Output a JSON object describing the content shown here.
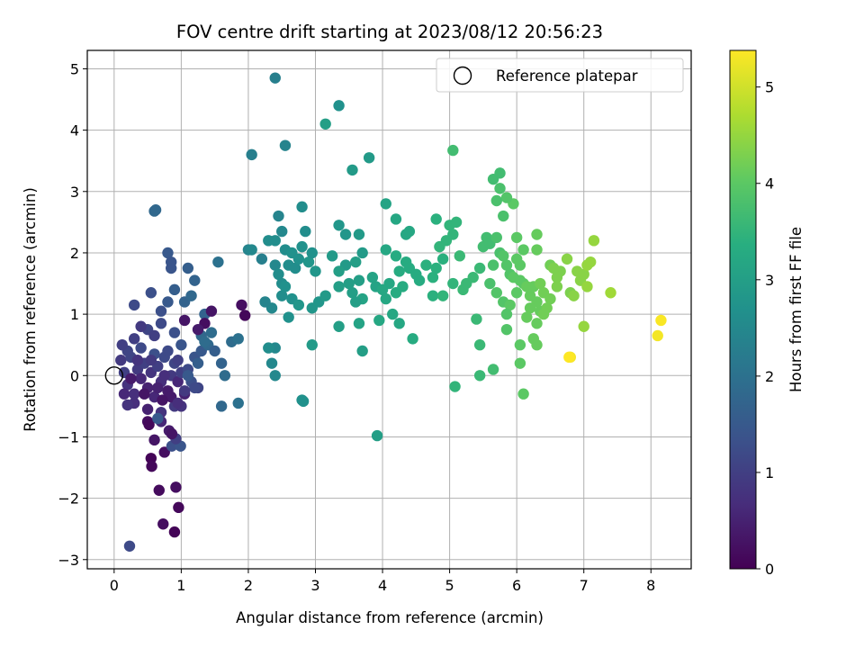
{
  "chart_data": {
    "type": "scatter",
    "title": "FOV centre drift starting at 2023/08/12 20:56:23",
    "xlabel": "Angular distance from reference (arcmin)",
    "ylabel": "Rotation from reference (arcmin)",
    "colorbar_label": "Hours from first FF file",
    "colormap": "viridis",
    "xlim": [
      -0.4,
      8.6
    ],
    "ylim": [
      -3.15,
      5.3
    ],
    "clim": [
      0,
      5.38
    ],
    "xticks": [
      0,
      1,
      2,
      3,
      4,
      5,
      6,
      7,
      8
    ],
    "yticks": [
      -3,
      -2,
      -1,
      0,
      1,
      2,
      3,
      4,
      5
    ],
    "colorbar_ticks": [
      0,
      1,
      2,
      3,
      4,
      5
    ],
    "grid": true,
    "legend": {
      "position": "top-right",
      "entries": [
        {
          "label": "Reference platepar",
          "marker": "hollow-circle",
          "x": 0,
          "y": 0
        }
      ]
    },
    "points": [
      [
        0.1,
        0.25,
        0.9
      ],
      [
        0.15,
        0.05,
        1.0
      ],
      [
        0.2,
        -0.15,
        0.8
      ],
      [
        0.25,
        0.3,
        1.1
      ],
      [
        0.3,
        -0.3,
        0.7
      ],
      [
        0.35,
        0.1,
        0.9
      ],
      [
        0.4,
        -0.05,
        0.6
      ],
      [
        0.45,
        0.2,
        1.0
      ],
      [
        0.5,
        -0.2,
        0.5
      ],
      [
        0.55,
        0.05,
        0.8
      ],
      [
        0.6,
        -0.35,
        0.6
      ],
      [
        0.65,
        0.15,
        1.0
      ],
      [
        0.7,
        -0.1,
        0.7
      ],
      [
        0.75,
        0.3,
        1.2
      ],
      [
        0.8,
        -0.25,
        0.4
      ],
      [
        0.85,
        0.0,
        0.9
      ],
      [
        0.9,
        0.2,
        1.1
      ],
      [
        0.95,
        -0.1,
        0.6
      ],
      [
        1.0,
        0.05,
        1.0
      ],
      [
        1.05,
        -0.3,
        0.5
      ],
      [
        0.2,
        0.4,
        1.1
      ],
      [
        0.3,
        -0.45,
        0.7
      ],
      [
        0.4,
        0.45,
        1.2
      ],
      [
        0.5,
        -0.55,
        0.5
      ],
      [
        0.6,
        0.35,
        1.3
      ],
      [
        0.7,
        -0.6,
        0.8
      ],
      [
        0.8,
        0.4,
        1.2
      ],
      [
        0.9,
        -0.5,
        0.9
      ],
      [
        0.25,
        -0.05,
        0.4
      ],
      [
        0.35,
        0.25,
        0.8
      ],
      [
        0.45,
        -0.3,
        0.3
      ],
      [
        0.55,
        0.25,
        0.9
      ],
      [
        0.65,
        -0.2,
        0.5
      ],
      [
        0.75,
        0.0,
        0.7
      ],
      [
        0.85,
        -0.35,
        0.4
      ],
      [
        0.95,
        0.25,
        1.0
      ],
      [
        0.15,
        -0.3,
        0.6
      ],
      [
        0.12,
        0.5,
        1.0
      ],
      [
        0.2,
        -0.48,
        0.8
      ],
      [
        1.1,
        0.1,
        1.2
      ],
      [
        1.15,
        -0.1,
        1.3
      ],
      [
        1.2,
        0.3,
        1.4
      ],
      [
        1.25,
        -0.2,
        1.1
      ],
      [
        1.3,
        0.4,
        1.5
      ],
      [
        0.3,
        0.6,
        1.0
      ],
      [
        0.5,
        0.75,
        1.1
      ],
      [
        0.7,
        0.85,
        1.2
      ],
      [
        0.9,
        0.7,
        1.3
      ],
      [
        1.0,
        0.5,
        1.4
      ],
      [
        0.4,
        0.8,
        0.9
      ],
      [
        0.6,
        0.65,
        1.0
      ],
      [
        0.8,
        1.2,
        1.5
      ],
      [
        0.55,
        1.35,
        1.3
      ],
      [
        0.9,
        1.4,
        1.6
      ],
      [
        0.3,
        1.15,
        1.2
      ],
      [
        0.7,
        1.05,
        1.3
      ],
      [
        1.05,
        1.2,
        1.7
      ],
      [
        1.1,
        1.75,
        1.6
      ],
      [
        0.85,
        1.75,
        1.4
      ],
      [
        0.8,
        2.0,
        1.5
      ],
      [
        0.85,
        1.85,
        1.4
      ],
      [
        1.2,
        1.55,
        1.7
      ],
      [
        1.15,
        1.3,
        1.8
      ],
      [
        1.35,
        1.0,
        1.7
      ],
      [
        1.45,
        0.7,
        1.9
      ],
      [
        1.4,
        0.5,
        1.8
      ],
      [
        1.5,
        0.4,
        1.6
      ],
      [
        1.6,
        0.2,
        1.7
      ],
      [
        1.75,
        0.55,
        1.9
      ],
      [
        1.85,
        0.6,
        2.0
      ],
      [
        1.3,
        0.65,
        1.8
      ],
      [
        1.35,
        0.55,
        1.9
      ],
      [
        1.25,
        0.2,
        1.6
      ],
      [
        1.1,
        0.0,
        1.5
      ],
      [
        1.55,
        1.85,
        2.0
      ],
      [
        1.9,
        1.15,
        0.2
      ],
      [
        1.95,
        0.98,
        0.1
      ],
      [
        1.45,
        1.05,
        0.3
      ],
      [
        1.35,
        0.85,
        0.2
      ],
      [
        1.25,
        0.75,
        0.4
      ],
      [
        0.6,
        2.68,
        1.8
      ],
      [
        0.62,
        2.7,
        1.8
      ],
      [
        0.5,
        -0.75,
        0.2
      ],
      [
        0.52,
        -0.8,
        0.1
      ],
      [
        0.6,
        -1.05,
        0.3
      ],
      [
        0.7,
        -0.75,
        0.6
      ],
      [
        0.82,
        -0.9,
        0.4
      ],
      [
        0.75,
        -1.25,
        0.2
      ],
      [
        0.55,
        -1.35,
        0.05
      ],
      [
        0.56,
        -1.48,
        0.1
      ],
      [
        0.67,
        -1.87,
        0.15
      ],
      [
        0.92,
        -1.82,
        0.2
      ],
      [
        0.96,
        -2.15,
        0.1
      ],
      [
        0.73,
        -2.42,
        0.2
      ],
      [
        0.9,
        -2.55,
        0.05
      ],
      [
        0.23,
        -2.78,
        1.2
      ],
      [
        0.86,
        -1.15,
        1.3
      ],
      [
        0.99,
        -1.15,
        1.4
      ],
      [
        0.92,
        -1.03,
        1.0
      ],
      [
        0.86,
        -0.95,
        0.3
      ],
      [
        1.0,
        -0.5,
        0.8
      ],
      [
        1.05,
        0.9,
        0.3
      ],
      [
        1.2,
        -0.2,
        1.2
      ],
      [
        1.6,
        -0.5,
        1.8
      ],
      [
        1.85,
        -0.45,
        2.0
      ],
      [
        1.65,
        0.0,
        1.9
      ],
      [
        1.05,
        -0.25,
        0.9
      ],
      [
        0.95,
        -0.45,
        0.7
      ],
      [
        0.72,
        -0.4,
        0.3
      ],
      [
        0.65,
        -0.7,
        1.5
      ],
      [
        2.0,
        2.05,
        2.4
      ],
      [
        2.05,
        2.05,
        2.5
      ],
      [
        2.2,
        1.9,
        2.3
      ],
      [
        2.3,
        2.2,
        2.6
      ],
      [
        2.4,
        2.2,
        2.6
      ],
      [
        2.45,
        2.6,
        2.4
      ],
      [
        2.5,
        2.35,
        2.5
      ],
      [
        2.55,
        2.05,
        2.6
      ],
      [
        2.6,
        1.8,
        2.6
      ],
      [
        2.65,
        2.0,
        2.7
      ],
      [
        2.7,
        1.75,
        2.6
      ],
      [
        2.75,
        1.9,
        2.7
      ],
      [
        2.8,
        2.1,
        2.7
      ],
      [
        2.85,
        2.35,
        2.6
      ],
      [
        2.9,
        1.85,
        2.8
      ],
      [
        2.95,
        2.0,
        2.7
      ],
      [
        3.0,
        1.7,
        2.8
      ],
      [
        3.05,
        1.2,
        2.8
      ],
      [
        2.4,
        1.8,
        2.5
      ],
      [
        2.45,
        1.65,
        2.6
      ],
      [
        2.5,
        1.5,
        2.6
      ],
      [
        2.35,
        1.1,
        2.5
      ],
      [
        2.5,
        1.3,
        2.6
      ],
      [
        2.55,
        1.45,
        2.7
      ],
      [
        2.65,
        1.25,
        2.7
      ],
      [
        2.75,
        1.15,
        2.8
      ],
      [
        2.95,
        1.1,
        2.8
      ],
      [
        2.6,
        0.95,
        2.7
      ],
      [
        2.25,
        1.2,
        2.4
      ],
      [
        2.4,
        0.45,
        2.5
      ],
      [
        2.35,
        0.2,
        2.5
      ],
      [
        2.4,
        0.0,
        2.5
      ],
      [
        2.3,
        0.45,
        2.6
      ],
      [
        2.8,
        -0.4,
        2.7
      ],
      [
        2.82,
        -0.42,
        2.7
      ],
      [
        2.95,
        0.5,
        2.9
      ],
      [
        2.8,
        2.75,
        2.6
      ],
      [
        2.4,
        4.85,
        2.3
      ],
      [
        2.55,
        3.75,
        2.4
      ],
      [
        2.05,
        3.6,
        2.3
      ],
      [
        3.15,
        4.1,
        3.0
      ],
      [
        3.35,
        4.4,
        2.7
      ],
      [
        3.55,
        3.35,
        2.9
      ],
      [
        3.8,
        3.55,
        2.9
      ],
      [
        3.35,
        2.45,
        2.8
      ],
      [
        3.45,
        2.3,
        2.8
      ],
      [
        3.65,
        2.3,
        2.9
      ],
      [
        3.7,
        2.0,
        2.9
      ],
      [
        3.6,
        1.85,
        3.0
      ],
      [
        3.45,
        1.8,
        2.9
      ],
      [
        3.35,
        1.7,
        3.0
      ],
      [
        3.5,
        1.5,
        3.0
      ],
      [
        3.35,
        1.45,
        3.0
      ],
      [
        3.55,
        1.35,
        3.0
      ],
      [
        3.65,
        1.55,
        3.0
      ],
      [
        3.7,
        1.25,
        3.1
      ],
      [
        3.85,
        1.6,
        3.1
      ],
      [
        3.9,
        1.45,
        3.1
      ],
      [
        3.6,
        1.2,
        3.0
      ],
      [
        3.25,
        1.95,
        2.9
      ],
      [
        3.15,
        1.3,
        2.9
      ],
      [
        3.35,
        0.8,
        3.0
      ],
      [
        3.65,
        0.85,
        3.1
      ],
      [
        3.7,
        0.4,
        3.0
      ],
      [
        3.95,
        0.9,
        3.2
      ],
      [
        3.92,
        -0.98,
        3.0
      ],
      [
        4.05,
        2.8,
        3.1
      ],
      [
        4.2,
        2.55,
        3.2
      ],
      [
        4.35,
        2.3,
        3.2
      ],
      [
        4.4,
        2.35,
        3.2
      ],
      [
        4.05,
        2.05,
        3.2
      ],
      [
        4.2,
        1.95,
        3.3
      ],
      [
        4.35,
        1.85,
        3.3
      ],
      [
        4.25,
        1.7,
        3.3
      ],
      [
        4.4,
        1.75,
        3.3
      ],
      [
        4.5,
        1.65,
        3.3
      ],
      [
        4.55,
        1.55,
        3.3
      ],
      [
        4.1,
        1.5,
        3.2
      ],
      [
        4.2,
        1.35,
        3.3
      ],
      [
        4.3,
        1.45,
        3.3
      ],
      [
        4.0,
        1.4,
        3.2
      ],
      [
        4.05,
        1.25,
        3.2
      ],
      [
        4.15,
        1.0,
        3.2
      ],
      [
        4.25,
        0.85,
        3.2
      ],
      [
        4.45,
        0.6,
        3.3
      ],
      [
        4.65,
        1.8,
        3.4
      ],
      [
        4.75,
        1.6,
        3.4
      ],
      [
        4.8,
        1.75,
        3.4
      ],
      [
        4.9,
        1.9,
        3.4
      ],
      [
        4.95,
        2.2,
        3.5
      ],
      [
        4.85,
        2.1,
        3.5
      ],
      [
        4.8,
        2.55,
        3.4
      ],
      [
        5.0,
        2.45,
        3.5
      ],
      [
        5.1,
        2.5,
        3.5
      ],
      [
        5.05,
        2.3,
        3.5
      ],
      [
        5.15,
        1.95,
        3.6
      ],
      [
        4.75,
        1.3,
        3.4
      ],
      [
        4.9,
        1.3,
        3.5
      ],
      [
        5.05,
        1.5,
        3.5
      ],
      [
        5.2,
        1.4,
        3.6
      ],
      [
        5.05,
        3.67,
        3.7
      ],
      [
        5.08,
        -0.18,
        3.5
      ],
      [
        5.25,
        1.5,
        3.6
      ],
      [
        5.35,
        1.6,
        3.6
      ],
      [
        5.45,
        1.75,
        3.6
      ],
      [
        5.5,
        2.1,
        3.7
      ],
      [
        5.55,
        2.25,
        3.7
      ],
      [
        5.6,
        2.15,
        3.7
      ],
      [
        5.7,
        2.25,
        3.8
      ],
      [
        5.75,
        2.0,
        3.8
      ],
      [
        5.8,
        1.95,
        3.9
      ],
      [
        5.85,
        1.8,
        3.9
      ],
      [
        5.9,
        1.65,
        3.9
      ],
      [
        5.65,
        1.8,
        3.8
      ],
      [
        5.6,
        1.5,
        3.8
      ],
      [
        5.7,
        1.35,
        3.9
      ],
      [
        5.8,
        1.2,
        3.9
      ],
      [
        5.9,
        1.15,
        4.0
      ],
      [
        6.0,
        1.35,
        4.0
      ],
      [
        6.05,
        1.55,
        4.0
      ],
      [
        6.1,
        1.5,
        4.0
      ],
      [
        6.15,
        1.45,
        4.1
      ],
      [
        6.2,
        1.3,
        4.1
      ],
      [
        6.25,
        1.45,
        4.1
      ],
      [
        6.3,
        1.2,
        4.1
      ],
      [
        6.35,
        1.05,
        4.1
      ],
      [
        6.4,
        1.0,
        4.2
      ],
      [
        6.2,
        1.1,
        4.1
      ],
      [
        6.15,
        0.95,
        4.1
      ],
      [
        6.3,
        0.85,
        4.1
      ],
      [
        6.45,
        1.1,
        4.2
      ],
      [
        6.5,
        1.8,
        4.2
      ],
      [
        6.3,
        2.05,
        4.1
      ],
      [
        6.3,
        2.3,
        4.1
      ],
      [
        6.1,
        2.05,
        4.0
      ],
      [
        6.0,
        2.25,
        4.0
      ],
      [
        6.05,
        1.8,
        4.0
      ],
      [
        5.95,
        2.8,
        4.0
      ],
      [
        5.85,
        2.9,
        3.9
      ],
      [
        5.75,
        3.05,
        3.8
      ],
      [
        5.65,
        3.2,
        3.7
      ],
      [
        5.7,
        2.85,
        3.8
      ],
      [
        5.8,
        2.6,
        3.8
      ],
      [
        5.75,
        3.3,
        3.7
      ],
      [
        5.4,
        0.92,
        3.6
      ],
      [
        5.45,
        0.5,
        3.6
      ],
      [
        5.45,
        0.0,
        3.6
      ],
      [
        5.65,
        0.1,
        3.7
      ],
      [
        5.85,
        1.0,
        3.9
      ],
      [
        5.85,
        0.75,
        3.9
      ],
      [
        6.05,
        0.5,
        4.0
      ],
      [
        6.05,
        0.2,
        4.0
      ],
      [
        6.1,
        -0.3,
        4.0
      ],
      [
        6.25,
        0.6,
        4.1
      ],
      [
        6.3,
        0.5,
        4.1
      ],
      [
        6.8,
        0.3,
        5.3
      ],
      [
        6.78,
        0.3,
        5.38
      ],
      [
        6.8,
        1.35,
        4.3
      ],
      [
        6.85,
        1.3,
        4.4
      ],
      [
        6.9,
        1.7,
        4.4
      ],
      [
        6.95,
        1.55,
        4.4
      ],
      [
        7.0,
        1.65,
        4.4
      ],
      [
        7.05,
        1.8,
        4.5
      ],
      [
        7.1,
        1.85,
        4.5
      ],
      [
        7.05,
        1.45,
        4.5
      ],
      [
        7.15,
        2.2,
        4.5
      ],
      [
        7.0,
        0.8,
        4.5
      ],
      [
        7.4,
        1.35,
        4.6
      ],
      [
        8.1,
        0.65,
        5.3
      ],
      [
        8.15,
        0.9,
        5.35
      ],
      [
        6.75,
        1.9,
        4.4
      ],
      [
        6.65,
        1.7,
        4.3
      ],
      [
        6.6,
        1.6,
        4.3
      ],
      [
        6.6,
        1.45,
        4.3
      ],
      [
        6.55,
        1.75,
        4.3
      ],
      [
        6.4,
        1.35,
        4.2
      ],
      [
        6.35,
        1.5,
        4.2
      ],
      [
        6.5,
        1.25,
        4.2
      ],
      [
        5.95,
        1.6,
        4.0
      ],
      [
        6.0,
        1.9,
        4.0
      ]
    ]
  }
}
